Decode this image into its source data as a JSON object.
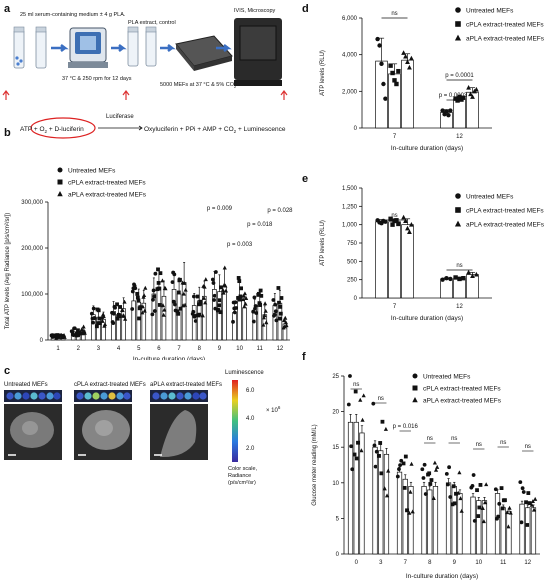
{
  "panels": {
    "a": {
      "letter": "a",
      "medium_text": "25 ml serum-containing medium ± 4 g PLA.",
      "shaker_text": "37 °C & 250 rpm for 12 days",
      "extract_text": "PLA extract, control",
      "plate_text": "5000 MEFs at 37 °C & 5% CO",
      "plate_sub": "2",
      "ivis_text": "IVIS, Microscopy"
    },
    "b": {
      "letter": "b",
      "reaction_left": "ATP + O",
      "reaction_left2": "2",
      "reaction_left3": " + D-luciferin",
      "enzyme": "Luciferase",
      "reaction_right": "Oxyluciferin + PPi + AMP + CO",
      "reaction_right2": "2",
      "reaction_right3": " + Luminescence"
    },
    "c": {
      "letter": "c",
      "labels": [
        "Untreated MEFs",
        "cPLA extract-treated MEFs",
        "aPLA extract-treated MEFs"
      ],
      "colorbar_title": "Luminescence",
      "colorbar_ticks": [
        "6.0",
        "4.0",
        "2.0"
      ],
      "colorbar_exp": "× 10",
      "colorbar_exp_sup": "6",
      "colorbar_caption1": "Color scale,",
      "colorbar_caption2": "Radiance",
      "colorbar_caption3": "(p/s/cm²/sr)"
    },
    "d": {
      "letter": "d"
    },
    "e": {
      "letter": "e"
    },
    "f": {
      "letter": "f"
    }
  },
  "legend_labels": [
    "Untreated MEFs",
    "cPLA extract-treated MEFs",
    "aPLA extract-treated MEFs"
  ],
  "chart_data": [
    {
      "id": "b",
      "type": "bar",
      "ylabel": "Total ATP levels (Avg Radiance [p/s/cm²/sr])",
      "xlabel": "In-culture duration (days)",
      "ylim": [
        0,
        300000
      ],
      "yticks": [
        0,
        100000,
        200000,
        300000
      ],
      "ytick_labels": [
        "0",
        "100,000",
        "200,000",
        "300,000"
      ],
      "categories": [
        "1",
        "2",
        "3",
        "4",
        "5",
        "6",
        "7",
        "8",
        "9",
        "10",
        "11",
        "12"
      ],
      "series": [
        {
          "name": "Untreated MEFs",
          "values": [
            10000,
            18000,
            55000,
            62000,
            85000,
            100000,
            110000,
            75000,
            110000,
            60000,
            65000,
            75000
          ]
        },
        {
          "name": "cPLA extract-treated MEFs",
          "values": [
            8000,
            15000,
            48000,
            55000,
            82000,
            115000,
            100000,
            85000,
            105000,
            95000,
            80000,
            80000
          ]
        },
        {
          "name": "aPLA extract-treated MEFs",
          "values": [
            9000,
            20000,
            45000,
            68000,
            80000,
            95000,
            125000,
            95000,
            115000,
            70000,
            55000,
            35000
          ]
        }
      ],
      "annotations": [
        {
          "category": "9",
          "text": "p = 0.009"
        },
        {
          "category": "10",
          "text": "p = 0.003"
        },
        {
          "category": "11",
          "text": "p = 0.018"
        },
        {
          "category": "12",
          "text": "p = 0.028"
        }
      ],
      "grid": false
    },
    {
      "id": "d",
      "type": "bar",
      "ylabel": "ATP levels (RLU)",
      "xlabel": "In-culture duration (days)",
      "ylim": [
        0,
        6000
      ],
      "yticks": [
        0,
        2000,
        4000,
        6000
      ],
      "ytick_labels": [
        "0",
        "2,000",
        "4,000",
        "6,000"
      ],
      "categories": [
        "7",
        "12"
      ],
      "series": [
        {
          "name": "Untreated MEFs",
          "values": [
            3650,
            850
          ],
          "errors": [
            1250,
            150
          ],
          "points": [
            [
              4850,
              4500,
              3500,
              2400,
              1600
            ],
            [
              950,
              750,
              900,
              700,
              950
            ]
          ]
        },
        {
          "name": "cPLA extract-treated MEFs",
          "values": [
            2950,
            1600
          ],
          "errors": [
            550,
            120
          ],
          "points": [
            [
              3400,
              3000,
              2600,
              2400,
              3100
            ],
            [
              1600,
              1500,
              1700,
              1550,
              1650
            ]
          ]
        },
        {
          "name": "aPLA extract-treated MEFs",
          "values": [
            3700,
            1950
          ],
          "errors": [
            350,
            250
          ],
          "points": [
            [
              4100,
              3900,
              3600,
              3300,
              3800
            ],
            [
              2200,
              1850,
              1700,
              2000,
              2100
            ]
          ]
        }
      ],
      "annotations": [
        {
          "text": "ns",
          "from": [
            0,
            0
          ],
          "to": [
            0,
            2
          ]
        },
        {
          "text": "p = 0.0001",
          "from": [
            1,
            0
          ],
          "to": [
            1,
            2
          ]
        },
        {
          "text": "p = 0.0003",
          "from": [
            1,
            0
          ],
          "to": [
            1,
            1
          ]
        }
      ],
      "grid": false
    },
    {
      "id": "e",
      "type": "bar",
      "ylabel": "ATP levels (RLU)",
      "xlabel": "In-culture duration (days)",
      "ylim": [
        0,
        1500
      ],
      "yticks": [
        0,
        250,
        500,
        750,
        1000,
        1250,
        1500
      ],
      "ytick_labels": [
        "0",
        "250",
        "500",
        "750",
        "1,000",
        "1,250",
        "1,500"
      ],
      "categories": [
        "7",
        "12"
      ],
      "series": [
        {
          "name": "Untreated MEFs",
          "values": [
            1040,
            260
          ],
          "errors": [
            30,
            15
          ],
          "points": [
            [
              1060,
              1030,
              1020,
              1050,
              1040
            ],
            [
              250,
              270,
              260
            ]
          ]
        },
        {
          "name": "cPLA extract-treated MEFs",
          "values": [
            1040,
            270
          ],
          "errors": [
            40,
            15
          ],
          "points": [
            [
              1080,
              1000,
              1050,
              1060,
              1010
            ],
            [
              280,
              260,
              270
            ]
          ]
        },
        {
          "name": "aPLA extract-treated MEFs",
          "values": [
            1000,
            320
          ],
          "errors": [
            80,
            30
          ],
          "points": [
            [
              1100,
              1050,
              950,
              900,
              1000
            ],
            [
              350,
              300,
              320
            ]
          ]
        }
      ],
      "annotations": [
        {
          "text": "ns",
          "from": [
            0,
            0
          ],
          "to": [
            0,
            2
          ]
        },
        {
          "text": "ns",
          "from": [
            1,
            0
          ],
          "to": [
            1,
            2
          ]
        }
      ],
      "grid": false
    },
    {
      "id": "f",
      "type": "bar",
      "ylabel": "Glucose meter reading (mM/L)",
      "xlabel": "In-culture duration (days)",
      "ylim": [
        0,
        25
      ],
      "yticks": [
        0,
        5,
        10,
        15,
        20,
        25
      ],
      "ytick_labels": [
        "0",
        "5",
        "10",
        "15",
        "20",
        "25"
      ],
      "categories": [
        "0",
        "3",
        "7",
        "8",
        "9",
        "10",
        "11",
        "12"
      ],
      "series": [
        {
          "name": "Untreated MEFs",
          "values": [
            18.5,
            15,
            11.5,
            9.5,
            10,
            8,
            8.5,
            7
          ]
        },
        {
          "name": "cPLA extract-treated MEFs",
          "values": [
            18.5,
            14.5,
            10.5,
            9,
            9.5,
            7.5,
            6.5,
            6.5
          ]
        },
        {
          "name": "aPLA extract-treated MEFs",
          "values": [
            17,
            14,
            9.5,
            9.5,
            8.5,
            7.5,
            6,
            6.5
          ]
        }
      ],
      "annotations": [
        {
          "category": "0",
          "text": "ns"
        },
        {
          "category": "3",
          "text": "ns"
        },
        {
          "category": "7",
          "text": "p = 0.016"
        },
        {
          "category": "8",
          "text": "ns"
        },
        {
          "category": "9",
          "text": "ns"
        },
        {
          "category": "10",
          "text": "ns"
        },
        {
          "category": "11",
          "text": "ns"
        },
        {
          "category": "12",
          "text": "ns"
        }
      ],
      "grid": false
    }
  ]
}
